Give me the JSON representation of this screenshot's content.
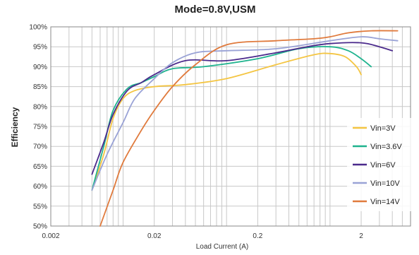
{
  "chart_data": {
    "type": "line",
    "title": "Mode=0.8V,USM",
    "xlabel": "Load Current (A)",
    "ylabel": "Efficiency",
    "xscale": "log",
    "xlim": [
      0.002,
      6
    ],
    "ylim": [
      50,
      100
    ],
    "x_ticks": [
      {
        "value": 0.002,
        "label": "0.002"
      },
      {
        "value": 0.02,
        "label": "0.02"
      },
      {
        "value": 0.2,
        "label": "0.2"
      },
      {
        "value": 2,
        "label": "2"
      }
    ],
    "y_ticks": [
      {
        "value": 100,
        "label": "100%"
      },
      {
        "value": 95,
        "label": "95%"
      },
      {
        "value": 90,
        "label": "90%"
      },
      {
        "value": 85,
        "label": "85%"
      },
      {
        "value": 80,
        "label": "80%"
      },
      {
        "value": 75,
        "label": "75%"
      },
      {
        "value": 70,
        "label": "70%"
      },
      {
        "value": 65,
        "label": "65%"
      },
      {
        "value": 60,
        "label": "60%"
      },
      {
        "value": 55,
        "label": "55%"
      },
      {
        "value": 50,
        "label": "50%"
      }
    ],
    "grid": true,
    "legend_position": "right",
    "series": [
      {
        "name": "Vin=3V",
        "color": "#f4c542",
        "points": [
          [
            0.005,
            59
          ],
          [
            0.0065,
            68
          ],
          [
            0.008,
            77
          ],
          [
            0.01,
            82
          ],
          [
            0.013,
            84
          ],
          [
            0.02,
            85
          ],
          [
            0.04,
            85.5
          ],
          [
            0.1,
            87
          ],
          [
            0.3,
            90.5
          ],
          [
            0.7,
            93
          ],
          [
            1.0,
            93.3
          ],
          [
            1.4,
            92.5
          ],
          [
            1.8,
            90
          ],
          [
            2.0,
            88
          ]
        ]
      },
      {
        "name": "Vin=3.6V",
        "color": "#1fb38e",
        "points": [
          [
            0.005,
            59
          ],
          [
            0.0065,
            70
          ],
          [
            0.008,
            79
          ],
          [
            0.011,
            84.5
          ],
          [
            0.015,
            86
          ],
          [
            0.02,
            87.5
          ],
          [
            0.03,
            89.5
          ],
          [
            0.06,
            90
          ],
          [
            0.2,
            92
          ],
          [
            0.5,
            94.5
          ],
          [
            1.0,
            95
          ],
          [
            1.5,
            94
          ],
          [
            2.0,
            92
          ],
          [
            2.5,
            90
          ]
        ]
      },
      {
        "name": "Vin=6V",
        "color": "#4b2a8c",
        "points": [
          [
            0.005,
            63
          ],
          [
            0.0065,
            71
          ],
          [
            0.008,
            78
          ],
          [
            0.011,
            84
          ],
          [
            0.015,
            86
          ],
          [
            0.02,
            88
          ],
          [
            0.04,
            91.5
          ],
          [
            0.1,
            91.5
          ],
          [
            0.3,
            93.5
          ],
          [
            0.6,
            95
          ],
          [
            1.0,
            95.8
          ],
          [
            2.0,
            96
          ],
          [
            3.0,
            95
          ],
          [
            4.0,
            94
          ]
        ]
      },
      {
        "name": "Vin=10V",
        "color": "#9aa3d6",
        "points": [
          [
            0.005,
            59
          ],
          [
            0.007,
            68
          ],
          [
            0.01,
            76
          ],
          [
            0.013,
            82
          ],
          [
            0.02,
            87
          ],
          [
            0.03,
            91
          ],
          [
            0.05,
            93.5
          ],
          [
            0.1,
            94
          ],
          [
            0.3,
            94.5
          ],
          [
            1.0,
            96.5
          ],
          [
            2.0,
            97.5
          ],
          [
            3.0,
            97
          ],
          [
            4.5,
            96.5
          ]
        ]
      },
      {
        "name": "Vin=14V",
        "color": "#e07a3c",
        "points": [
          [
            0.006,
            50
          ],
          [
            0.008,
            59
          ],
          [
            0.01,
            66
          ],
          [
            0.015,
            74
          ],
          [
            0.02,
            79
          ],
          [
            0.03,
            85
          ],
          [
            0.05,
            90.5
          ],
          [
            0.1,
            95.5
          ],
          [
            0.3,
            96.5
          ],
          [
            0.7,
            97
          ],
          [
            1.0,
            97.5
          ],
          [
            1.5,
            98.5
          ],
          [
            2.5,
            99
          ],
          [
            4.5,
            99
          ]
        ]
      }
    ]
  }
}
